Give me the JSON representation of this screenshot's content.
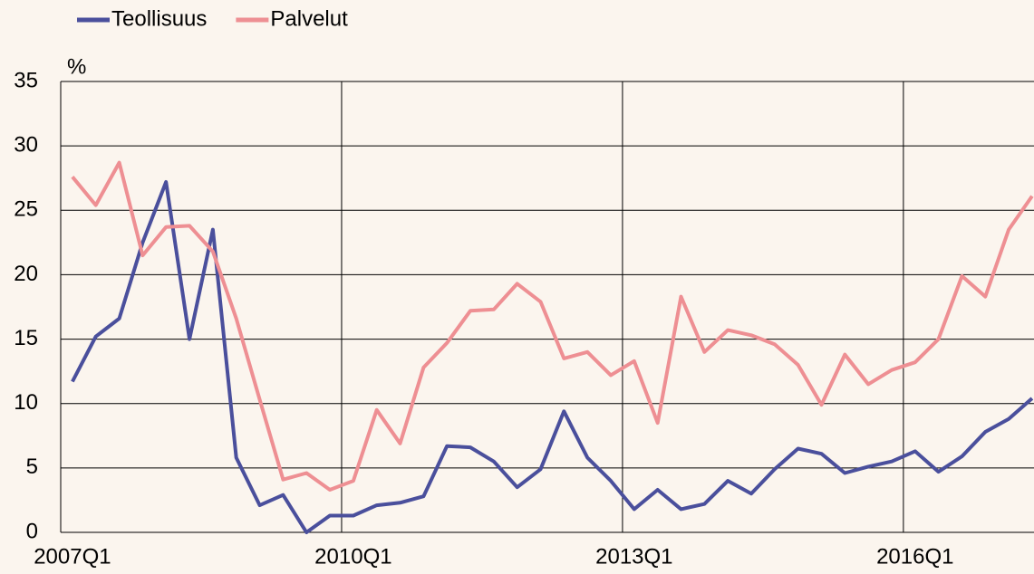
{
  "chart_data": {
    "type": "line",
    "unit_label": "%",
    "legend": "top-left",
    "grid": true,
    "categories": [
      "2007Q1",
      null,
      null,
      null,
      null,
      null,
      null,
      null,
      null,
      null,
      null,
      null,
      "2010Q1",
      null,
      null,
      null,
      null,
      null,
      null,
      null,
      null,
      null,
      null,
      null,
      "2013Q1",
      null,
      null,
      null,
      null,
      null,
      null,
      null,
      null,
      null,
      null,
      null,
      "2016Q1",
      null,
      null,
      null,
      null,
      null
    ],
    "series": [
      {
        "name": "Teollisuus",
        "color": "#4a4f9c",
        "values": [
          11.7,
          15.2,
          16.6,
          22.5,
          27.2,
          15.0,
          23.5,
          5.8,
          2.1,
          2.9,
          0.0,
          1.3,
          1.3,
          2.1,
          2.3,
          2.8,
          6.7,
          6.6,
          5.5,
          3.5,
          4.9,
          9.4,
          5.8,
          4.0,
          1.8,
          3.3,
          1.8,
          2.2,
          4.0,
          3.0,
          4.9,
          6.5,
          6.1,
          4.6,
          5.1,
          5.5,
          6.3,
          4.7,
          5.9,
          7.8,
          8.8,
          10.4
        ]
      },
      {
        "name": "Palvelut",
        "color": "#ee8f93",
        "values": [
          27.6,
          25.4,
          28.7,
          21.5,
          23.7,
          23.8,
          21.8,
          16.6,
          10.3,
          4.1,
          4.6,
          3.3,
          4.0,
          9.5,
          6.9,
          12.8,
          14.7,
          17.2,
          17.3,
          19.3,
          17.9,
          13.5,
          14.0,
          12.2,
          13.3,
          8.5,
          18.3,
          14.0,
          15.7,
          15.3,
          14.6,
          13.0,
          9.9,
          13.8,
          11.5,
          12.6,
          13.2,
          15.0,
          19.9,
          18.3,
          23.5,
          26.1
        ]
      }
    ],
    "ylim": [
      0,
      35
    ],
    "yticks": [
      0,
      5,
      10,
      15,
      20,
      25,
      30,
      35
    ]
  }
}
